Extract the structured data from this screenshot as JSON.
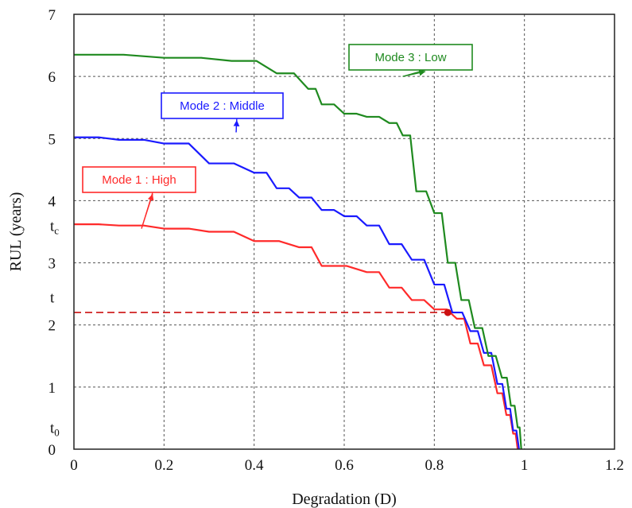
{
  "chart_data": {
    "type": "line",
    "xlabel": "Degradation (D)",
    "ylabel": "RUL (years)",
    "xlim": [
      0,
      1.2
    ],
    "ylim": [
      0,
      7
    ],
    "x_ticks": [
      "0",
      "0.2",
      "0.4",
      "0.6",
      "0.8",
      "1",
      "1.2"
    ],
    "y_ticks": [
      "0",
      "1",
      "2",
      "3",
      "4",
      "5",
      "6",
      "7"
    ],
    "grid": true,
    "series": [
      {
        "name": "Mode 1 : High",
        "color": "#ff2a2a",
        "points": [
          [
            0,
            3.62
          ],
          [
            0.1,
            3.6
          ],
          [
            0.2,
            3.55
          ],
          [
            0.3,
            3.5
          ],
          [
            0.4,
            3.35
          ],
          [
            0.5,
            3.25
          ],
          [
            0.55,
            2.95
          ],
          [
            0.65,
            2.85
          ],
          [
            0.7,
            2.6
          ],
          [
            0.75,
            2.4
          ],
          [
            0.8,
            2.25
          ],
          [
            0.85,
            2.1
          ],
          [
            0.88,
            1.7
          ],
          [
            0.91,
            1.35
          ],
          [
            0.94,
            0.9
          ],
          [
            0.96,
            0.55
          ],
          [
            0.975,
            0.25
          ],
          [
            0.985,
            0
          ]
        ]
      },
      {
        "name": "Mode 2 : Middle",
        "color": "#1a1aff",
        "points": [
          [
            0,
            5.02
          ],
          [
            0.1,
            4.98
          ],
          [
            0.2,
            4.92
          ],
          [
            0.3,
            4.6
          ],
          [
            0.4,
            4.45
          ],
          [
            0.45,
            4.2
          ],
          [
            0.5,
            4.05
          ],
          [
            0.55,
            3.85
          ],
          [
            0.6,
            3.75
          ],
          [
            0.65,
            3.6
          ],
          [
            0.7,
            3.3
          ],
          [
            0.75,
            3.05
          ],
          [
            0.8,
            2.65
          ],
          [
            0.84,
            2.2
          ],
          [
            0.88,
            1.9
          ],
          [
            0.91,
            1.55
          ],
          [
            0.94,
            1.05
          ],
          [
            0.96,
            0.65
          ],
          [
            0.975,
            0.3
          ],
          [
            0.988,
            0
          ]
        ]
      },
      {
        "name": "Mode 3 : Low",
        "color": "#1f8a1f",
        "points": [
          [
            0,
            6.35
          ],
          [
            0.2,
            6.3
          ],
          [
            0.35,
            6.25
          ],
          [
            0.45,
            6.05
          ],
          [
            0.52,
            5.8
          ],
          [
            0.55,
            5.55
          ],
          [
            0.6,
            5.4
          ],
          [
            0.65,
            5.35
          ],
          [
            0.7,
            5.25
          ],
          [
            0.73,
            5.05
          ],
          [
            0.76,
            4.15
          ],
          [
            0.8,
            3.8
          ],
          [
            0.83,
            3.0
          ],
          [
            0.86,
            2.4
          ],
          [
            0.89,
            1.95
          ],
          [
            0.92,
            1.5
          ],
          [
            0.95,
            1.15
          ],
          [
            0.97,
            0.7
          ],
          [
            0.985,
            0.35
          ],
          [
            0.993,
            0
          ]
        ]
      }
    ],
    "annotations": {
      "t_label": "t",
      "tc_label": "t",
      "tc_sub": "c",
      "t0_label": "t",
      "t0_sub": "0",
      "t_value": 2.2,
      "tc_value": 3.6,
      "t0_value": 0.35,
      "marker_point": [
        0.83,
        2.2
      ],
      "dashed_line_y": 2.2,
      "dashed_line_color": "#cc1111"
    }
  }
}
